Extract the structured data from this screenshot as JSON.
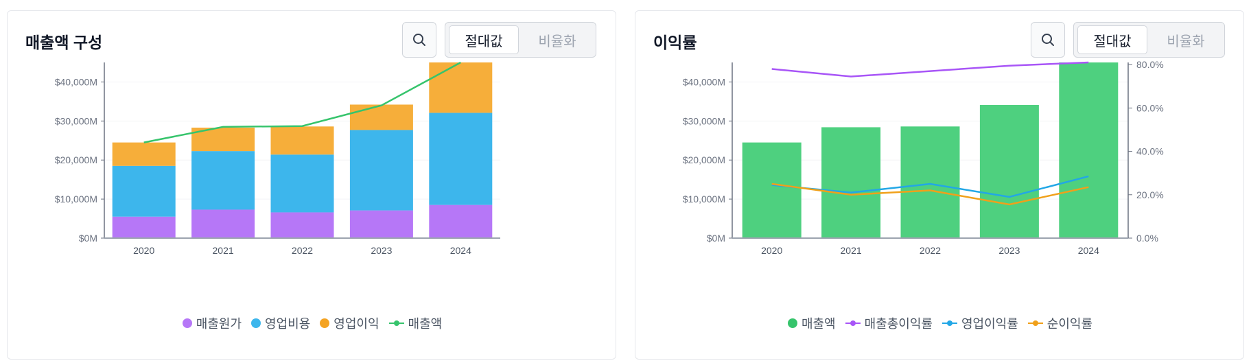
{
  "left_panel": {
    "title": "매출액 구성",
    "toggle": {
      "absolute": "절대값",
      "ratio": "비율화"
    },
    "legend": [
      {
        "label": "매출원가",
        "color": "#b677f7",
        "kind": "dot"
      },
      {
        "label": "영업비용",
        "color": "#3db6ec",
        "kind": "dot"
      },
      {
        "label": "영업이익",
        "color": "#f4a322",
        "kind": "dot"
      },
      {
        "label": "매출액",
        "color": "#36c46c",
        "kind": "line"
      }
    ]
  },
  "right_panel": {
    "title": "이익률",
    "toggle": {
      "absolute": "절대값",
      "ratio": "비율화"
    },
    "legend": [
      {
        "label": "매출액",
        "color": "#36c46c",
        "kind": "dot"
      },
      {
        "label": "매출총이익률",
        "color": "#a855f7",
        "kind": "line"
      },
      {
        "label": "영업이익률",
        "color": "#22a7e6",
        "kind": "line"
      },
      {
        "label": "순이익률",
        "color": "#f0a01a",
        "kind": "line"
      }
    ]
  },
  "icons": {
    "search": "search-icon"
  },
  "chart_data": [
    {
      "type": "bar",
      "stacked": true,
      "categories": [
        "2020",
        "2021",
        "2022",
        "2023",
        "2024"
      ],
      "series": [
        {
          "name": "매출원가",
          "values": [
            5500,
            7300,
            6600,
            7100,
            8500
          ],
          "color": "#b677f7"
        },
        {
          "name": "영업비용",
          "values": [
            13000,
            15000,
            14800,
            20600,
            23600
          ],
          "color": "#3db6ec"
        },
        {
          "name": "영업이익",
          "values": [
            6000,
            6000,
            7200,
            6500,
            13000
          ],
          "color": "#f6ae3a"
        }
      ],
      "line_series": [
        {
          "name": "매출액",
          "values": [
            24500,
            28500,
            28700,
            34000,
            45000
          ],
          "color": "#36c46c"
        }
      ],
      "yticks": [
        "$0M",
        "$10,000M",
        "$20,000M",
        "$30,000M",
        "$40,000M"
      ],
      "ylim": [
        0,
        45000
      ]
    },
    {
      "type": "bar",
      "categories": [
        "2020",
        "2021",
        "2022",
        "2023",
        "2024"
      ],
      "series": [
        {
          "name": "매출액",
          "values": [
            24500,
            28400,
            28600,
            34100,
            45000
          ],
          "color": "#4ed07f",
          "axis": "left"
        }
      ],
      "line_series": [
        {
          "name": "매출총이익률",
          "values": [
            78,
            74.5,
            77,
            79.5,
            81.5
          ],
          "color": "#a855f7",
          "axis": "right"
        },
        {
          "name": "영업이익률",
          "values": [
            24.5,
            21,
            25,
            19,
            28.5
          ],
          "color": "#22a7e6",
          "axis": "right"
        },
        {
          "name": "순이익률",
          "values": [
            25,
            20,
            22,
            15.5,
            23.5
          ],
          "color": "#f0a01a",
          "axis": "right"
        }
      ],
      "yticks_left": [
        "$0M",
        "$10,000M",
        "$20,000M",
        "$30,000M",
        "$40,000M"
      ],
      "yticks_right": [
        "0.0%",
        "20.0%",
        "40.0%",
        "60.0%",
        "80.0%"
      ],
      "ylim_left": [
        0,
        45000
      ],
      "ylim_right": [
        0,
        81
      ]
    }
  ]
}
